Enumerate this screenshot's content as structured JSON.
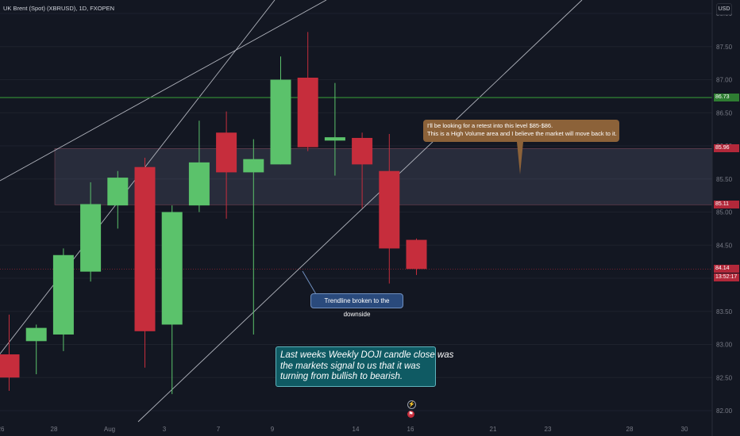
{
  "symbol": {
    "title": "UK Brent (Spot) (XBRUSD), 1D, FXOPEN",
    "currency": "USD"
  },
  "chart_data": {
    "type": "candlestick",
    "price_axis": {
      "range": [
        81.9,
        88.05
      ],
      "ticks": [
        "82.00",
        "82.50",
        "83.00",
        "83.50",
        "84.00",
        "84.50",
        "85.00",
        "85.50",
        "86.00",
        "86.50",
        "87.00",
        "87.50",
        "88.00"
      ]
    },
    "time_axis": {
      "ticks": [
        "26",
        "28",
        "Aug",
        "3",
        "7",
        "9",
        "14",
        "16",
        "21",
        "23",
        "28",
        "30"
      ]
    },
    "candles": [
      {
        "open": 82.85,
        "high": 83.45,
        "low": 82.3,
        "close": 82.5
      },
      {
        "open": 83.05,
        "high": 83.3,
        "low": 82.55,
        "close": 83.25
      },
      {
        "open": 83.15,
        "high": 84.45,
        "low": 82.9,
        "close": 84.35
      },
      {
        "open": 84.1,
        "high": 85.45,
        "low": 83.95,
        "close": 85.12
      },
      {
        "open": 85.1,
        "high": 85.62,
        "low": 84.75,
        "close": 85.52
      },
      {
        "open": 85.68,
        "high": 85.82,
        "low": 82.65,
        "close": 83.2
      },
      {
        "open": 83.3,
        "high": 85.1,
        "low": 82.25,
        "close": 85.0
      },
      {
        "open": 85.1,
        "high": 86.38,
        "low": 85.0,
        "close": 85.75
      },
      {
        "open": 86.2,
        "high": 86.52,
        "low": 84.9,
        "close": 85.6
      },
      {
        "open": 85.6,
        "high": 86.1,
        "low": 83.15,
        "close": 85.8
      },
      {
        "open": 85.72,
        "high": 87.35,
        "low": 85.72,
        "close": 87.0
      },
      {
        "open": 87.03,
        "high": 87.72,
        "low": 85.92,
        "close": 85.98
      },
      {
        "open": 86.08,
        "high": 86.95,
        "low": 85.55,
        "close": 86.13
      },
      {
        "open": 86.12,
        "high": 86.2,
        "low": 85.06,
        "close": 85.72
      },
      {
        "open": 85.62,
        "high": 86.18,
        "low": 83.92,
        "close": 84.45
      },
      {
        "open": 84.58,
        "high": 84.6,
        "low": 84.05,
        "close": 84.14
      }
    ],
    "levels": [
      {
        "price": 86.73,
        "label": "86.73",
        "color": "#2e7d32"
      },
      {
        "price": 85.96,
        "label": "85.96",
        "color": "#b2283a"
      },
      {
        "price": 85.11,
        "label": "85.11",
        "color": "#b2283a"
      },
      {
        "price": 84.14,
        "label": "84.14",
        "color": "#b2283a"
      }
    ],
    "zone": {
      "top": 85.96,
      "bottom": 85.11
    },
    "countdown": "13:52:17",
    "colors": {
      "up": "#5bc26b",
      "down": "#c62d3c",
      "background": "#131722",
      "grid": "#1e222d"
    }
  },
  "annotations": {
    "retest": {
      "line1": "I'll be looking for a retest into this level $85-$86.",
      "line2": "This is a High Volume area and I believe the market will move back to it."
    },
    "trendline": "Trendline broken to the downside",
    "doji": {
      "line1": "Last weeks Weekly DOJI candle close was",
      "line2": "the markets signal to us that it was",
      "line3": "turning from bullish to bearish."
    }
  },
  "events": [
    {
      "icon": "lightning-icon"
    },
    {
      "icon": "flag-icon"
    }
  ]
}
